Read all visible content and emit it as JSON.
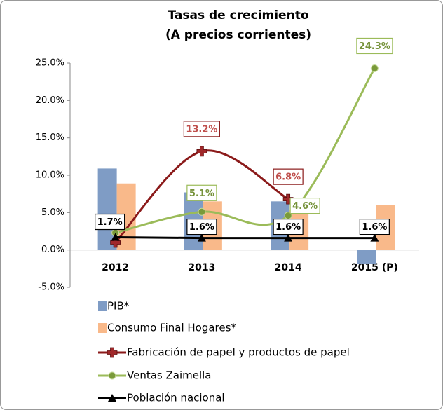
{
  "chart_data": {
    "type": "bar_line",
    "title": "Tasas de crecimiento",
    "subtitle": "(A precios corrientes)",
    "categories": [
      "2012",
      "2013",
      "2014",
      "2015 (P)"
    ],
    "ylim": [
      -5,
      25
    ],
    "yticks": [
      {
        "value": -5,
        "label": "-5.0%"
      },
      {
        "value": 0,
        "label": "0.0%"
      },
      {
        "value": 5,
        "label": "5.0%"
      },
      {
        "value": 10,
        "label": "10.0%"
      },
      {
        "value": 15,
        "label": "15.0%"
      },
      {
        "value": 20,
        "label": "20.0%"
      },
      {
        "value": 25,
        "label": "25.0%"
      }
    ],
    "series": [
      {
        "name": "PIB*",
        "kind": "bar",
        "color": "#7f9cc5",
        "values": [
          10.9,
          7.7,
          6.5,
          -1.9
        ]
      },
      {
        "name": "Consumo Final Hogares*",
        "kind": "bar",
        "color": "#f9b98a",
        "values": [
          8.9,
          6.5,
          5.4,
          6.0
        ]
      },
      {
        "name": "Fabricación de papel y productos de papel",
        "kind": "line",
        "marker": "cross",
        "color": "#8b1a1a",
        "label_color": "#c0504d",
        "values": [
          1.0,
          13.2,
          6.8,
          null
        ],
        "value_labels": [
          null,
          "13.2%",
          "6.8%",
          null
        ]
      },
      {
        "name": "Ventas Zaimella",
        "kind": "line",
        "marker": "circle",
        "color": "#9bbb59",
        "label_color": "#77933c",
        "values": [
          2.3,
          5.1,
          4.6,
          24.3
        ],
        "value_labels": [
          null,
          "5.1%",
          "4.6%",
          "24.3%"
        ]
      },
      {
        "name": "Población nacional",
        "kind": "line",
        "marker": "triangle",
        "color": "#000000",
        "label_color": "#000000",
        "values": [
          1.7,
          1.6,
          1.6,
          1.6
        ],
        "value_labels": [
          "1.7%",
          "1.6%",
          "1.6%",
          "1.6%"
        ]
      }
    ]
  }
}
